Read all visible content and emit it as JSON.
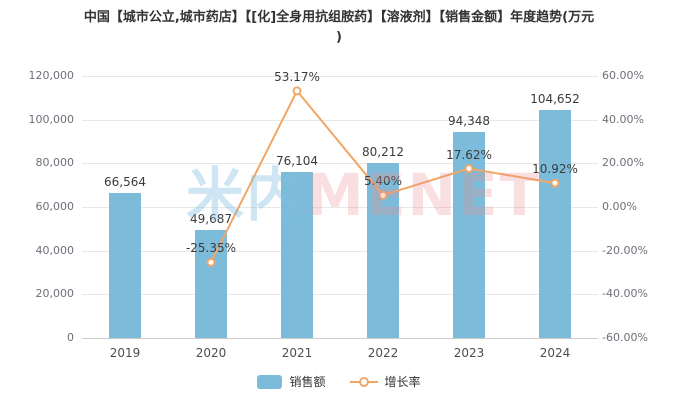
{
  "title": {
    "line1": "中国【城市公立,城市药店】【[化]全身用抗组胺药】【溶液剂】【销售金额】年度趋势(万元",
    "line2": ")"
  },
  "chart_data": {
    "type": "bar",
    "title": "中国【城市公立,城市药店】【[化]全身用抗组胺药】【溶液剂】【销售金额】年度趋势(万元)",
    "categories": [
      "2019",
      "2020",
      "2021",
      "2022",
      "2023",
      "2024"
    ],
    "series": [
      {
        "name": "销售额",
        "kind": "bar",
        "axis": "left",
        "values": [
          66564,
          49687,
          76104,
          80212,
          94348,
          104652
        ],
        "labels": [
          "66,564",
          "49,687",
          "76,104",
          "80,212",
          "94,348",
          "104,652"
        ],
        "color": "#7cbcda"
      },
      {
        "name": "增长率",
        "kind": "line",
        "axis": "right",
        "values": [
          null,
          -25.35,
          53.17,
          5.4,
          17.62,
          10.92
        ],
        "labels": [
          null,
          "-25.35%",
          "53.17%",
          "5.40%",
          "17.62%",
          "10.92%"
        ],
        "color": "#f2a666"
      }
    ],
    "left_axis": {
      "min": 0,
      "max": 120000,
      "ticks_top_to_bottom": [
        "120,000",
        "100,000",
        "80,000",
        "60,000",
        "40,000",
        "20,000",
        "0"
      ]
    },
    "right_axis": {
      "min": -60,
      "max": 60,
      "ticks_top_to_bottom": [
        "60.00%",
        "40.00%",
        "20.00%",
        "0.00%",
        "-20.00%",
        "-40.00%",
        "-60.00%"
      ]
    },
    "legend": [
      "销售额",
      "增长率"
    ],
    "grid": true,
    "legend_position": "bottom-center"
  },
  "watermark": {
    "part1": "米内",
    "part2": "MENET"
  },
  "colors": {
    "bar": "#7cbcda",
    "line": "#f2a666",
    "grid": "#e8e8e8",
    "axis_line": "#cccccc",
    "axis_text": "#6e7079",
    "data_label": "#3c3c3c",
    "title_text": "#333333"
  }
}
